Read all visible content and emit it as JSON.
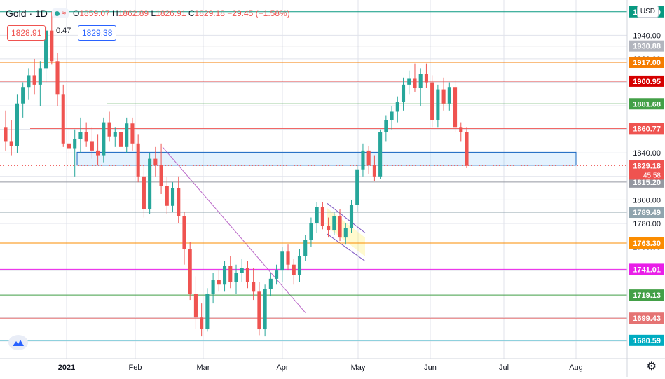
{
  "header": {
    "symbol": "Gold · 1D",
    "ohlc": {
      "o_label": "O",
      "o": "1859.07",
      "h_label": "H",
      "h": "1862.89",
      "l_label": "L",
      "l": "1826.91",
      "c_label": "C",
      "c": "1829.18",
      "change": "−29.45 (−1.58%)"
    }
  },
  "trade": {
    "sell": "1828.91",
    "spread": "0.47",
    "buy": "1829.38"
  },
  "currency_button": "USD",
  "colors": {
    "up": "#26a69a",
    "down": "#ef5350",
    "grid": "#e0e3eb"
  },
  "icons": [
    "status-dot-icon",
    "wave-icon",
    "tradingview-logo-icon",
    "settings-gear-icon"
  ],
  "chart_data": {
    "type": "candlestick",
    "y_axis_ticks": [
      1940.0,
      1920.0,
      1900.0,
      1880.0,
      1860.0,
      1840.0,
      1820.0,
      1800.0,
      1780.0,
      1760.0,
      1740.0,
      1720.0,
      1700.0,
      1680.0
    ],
    "x_axis_labels": [
      "2021",
      "Feb",
      "Mar",
      "Apr",
      "May",
      "Jun",
      "Jul",
      "Aug"
    ],
    "last_price": "1829.18",
    "countdown": "45:58",
    "ylim": [
      1665,
      1970
    ],
    "candles_approx": [
      [
        1862,
        1876,
        1842,
        1850
      ],
      [
        1850,
        1868,
        1838,
        1846
      ],
      [
        1846,
        1890,
        1840,
        1882
      ],
      [
        1882,
        1900,
        1870,
        1896
      ],
      [
        1896,
        1912,
        1885,
        1906
      ],
      [
        1906,
        1920,
        1890,
        1898
      ],
      [
        1898,
        1918,
        1880,
        1912
      ],
      [
        1912,
        1947,
        1900,
        1944
      ],
      [
        1944,
        1960,
        1915,
        1918
      ],
      [
        1918,
        1925,
        1880,
        1890
      ],
      [
        1890,
        1898,
        1845,
        1848
      ],
      [
        1848,
        1862,
        1828,
        1844
      ],
      [
        1844,
        1860,
        1820,
        1852
      ],
      [
        1852,
        1870,
        1840,
        1858
      ],
      [
        1858,
        1866,
        1845,
        1850
      ],
      [
        1850,
        1862,
        1835,
        1842
      ],
      [
        1842,
        1856,
        1830,
        1838
      ],
      [
        1838,
        1870,
        1832,
        1866
      ],
      [
        1866,
        1875,
        1850,
        1854
      ],
      [
        1854,
        1862,
        1845,
        1858
      ],
      [
        1858,
        1864,
        1840,
        1845
      ],
      [
        1845,
        1870,
        1840,
        1865
      ],
      [
        1865,
        1870,
        1842,
        1848
      ],
      [
        1848,
        1856,
        1815,
        1820
      ],
      [
        1820,
        1830,
        1785,
        1792
      ],
      [
        1792,
        1840,
        1788,
        1835
      ],
      [
        1835,
        1845,
        1820,
        1830
      ],
      [
        1830,
        1848,
        1805,
        1812
      ],
      [
        1812,
        1820,
        1788,
        1795
      ],
      [
        1795,
        1815,
        1790,
        1810
      ],
      [
        1810,
        1820,
        1780,
        1786
      ],
      [
        1786,
        1790,
        1745,
        1758
      ],
      [
        1758,
        1764,
        1715,
        1720
      ],
      [
        1720,
        1735,
        1690,
        1700
      ],
      [
        1700,
        1712,
        1684,
        1690
      ],
      [
        1690,
        1725,
        1688,
        1720
      ],
      [
        1720,
        1738,
        1712,
        1732
      ],
      [
        1732,
        1740,
        1722,
        1728
      ],
      [
        1728,
        1748,
        1722,
        1744
      ],
      [
        1744,
        1752,
        1725,
        1730
      ],
      [
        1730,
        1745,
        1720,
        1738
      ],
      [
        1738,
        1750,
        1730,
        1742
      ],
      [
        1742,
        1748,
        1725,
        1730
      ],
      [
        1730,
        1742,
        1715,
        1722
      ],
      [
        1722,
        1730,
        1685,
        1690
      ],
      [
        1690,
        1728,
        1684,
        1724
      ],
      [
        1724,
        1738,
        1718,
        1733
      ],
      [
        1733,
        1745,
        1728,
        1740
      ],
      [
        1740,
        1760,
        1730,
        1756
      ],
      [
        1756,
        1762,
        1740,
        1745
      ],
      [
        1745,
        1750,
        1728,
        1736
      ],
      [
        1736,
        1758,
        1730,
        1752
      ],
      [
        1752,
        1770,
        1748,
        1766
      ],
      [
        1766,
        1785,
        1760,
        1780
      ],
      [
        1780,
        1798,
        1772,
        1794
      ],
      [
        1794,
        1798,
        1775,
        1778
      ],
      [
        1778,
        1785,
        1768,
        1774
      ],
      [
        1774,
        1790,
        1770,
        1786
      ],
      [
        1786,
        1792,
        1765,
        1768
      ],
      [
        1768,
        1780,
        1762,
        1776
      ],
      [
        1776,
        1800,
        1772,
        1796
      ],
      [
        1796,
        1830,
        1790,
        1826
      ],
      [
        1826,
        1848,
        1820,
        1842
      ],
      [
        1842,
        1846,
        1822,
        1830
      ],
      [
        1830,
        1838,
        1816,
        1820
      ],
      [
        1820,
        1860,
        1818,
        1858
      ],
      [
        1858,
        1872,
        1850,
        1868
      ],
      [
        1868,
        1880,
        1860,
        1875
      ],
      [
        1875,
        1888,
        1866,
        1883
      ],
      [
        1883,
        1904,
        1876,
        1898
      ],
      [
        1898,
        1910,
        1890,
        1903
      ],
      [
        1903,
        1916,
        1892,
        1895
      ],
      [
        1895,
        1912,
        1880,
        1907
      ],
      [
        1907,
        1916,
        1895,
        1900
      ],
      [
        1900,
        1906,
        1862,
        1868
      ],
      [
        1868,
        1898,
        1862,
        1894
      ],
      [
        1894,
        1904,
        1876,
        1882
      ],
      [
        1882,
        1900,
        1876,
        1896
      ],
      [
        1896,
        1902,
        1858,
        1862
      ],
      [
        1862,
        1866,
        1850,
        1858
      ],
      [
        1858,
        1862,
        1827,
        1829
      ]
    ],
    "horizontal_levels": [
      {
        "value": "1960.00",
        "color": "#089981"
      },
      {
        "value": "1930.88",
        "color": "#b2b5be"
      },
      {
        "value": "1917.00",
        "color": "#f57c00"
      },
      {
        "value": "1900.95",
        "color": "#d50000"
      },
      {
        "value": "1881.68",
        "color": "#43a047"
      },
      {
        "value": "1860.77",
        "color": "#ef5350"
      },
      {
        "value": "1815.20",
        "color": "#9598a1"
      },
      {
        "value": "1789.49",
        "color": "#90a4ae"
      },
      {
        "value": "1763.30",
        "color": "#fb8c00"
      },
      {
        "value": "1741.01",
        "color": "#e91ee8"
      },
      {
        "value": "1719.13",
        "color": "#43a047"
      },
      {
        "value": "1699.43",
        "color": "#e57373"
      },
      {
        "value": "1680.59",
        "color": "#00acc1"
      }
    ],
    "grid": true
  }
}
